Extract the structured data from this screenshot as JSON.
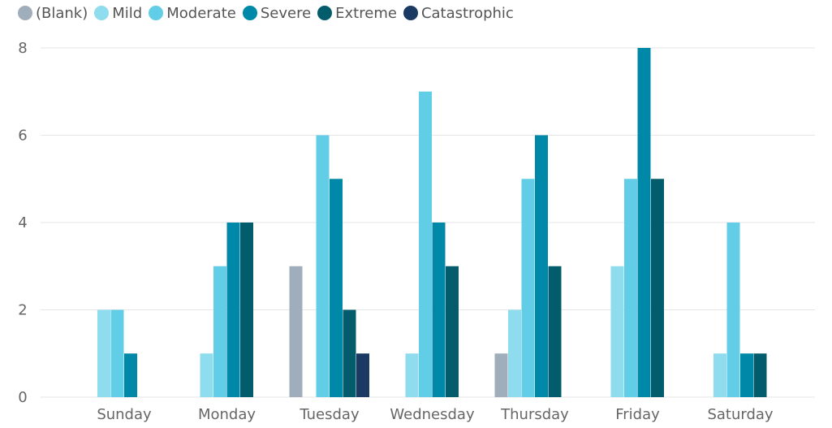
{
  "chart_data": {
    "type": "bar",
    "categories": [
      "Sunday",
      "Monday",
      "Tuesday",
      "Wednesday",
      "Thursday",
      "Friday",
      "Saturday"
    ],
    "series": [
      {
        "name": "(Blank)",
        "color": "#a0aebb",
        "values": [
          0,
          0,
          3,
          0,
          1,
          0,
          0
        ]
      },
      {
        "name": "Mild",
        "color": "#8fdcef",
        "values": [
          2,
          1,
          0,
          1,
          2,
          3,
          1
        ]
      },
      {
        "name": "Moderate",
        "color": "#62cde6",
        "values": [
          2,
          3,
          6,
          7,
          5,
          5,
          4
        ]
      },
      {
        "name": "Severe",
        "color": "#0088a8",
        "values": [
          1,
          4,
          5,
          4,
          6,
          8,
          1
        ]
      },
      {
        "name": "Extreme",
        "color": "#035c6b",
        "values": [
          0,
          4,
          2,
          3,
          3,
          5,
          1
        ]
      },
      {
        "name": "Catastrophic",
        "color": "#1b3a63",
        "values": [
          0,
          0,
          1,
          0,
          0,
          0,
          0
        ]
      }
    ],
    "y_ticks": [
      "0",
      "2",
      "4",
      "6",
      "8"
    ],
    "ylim": [
      0,
      8
    ],
    "grid": true,
    "legend_position": "top-left"
  }
}
